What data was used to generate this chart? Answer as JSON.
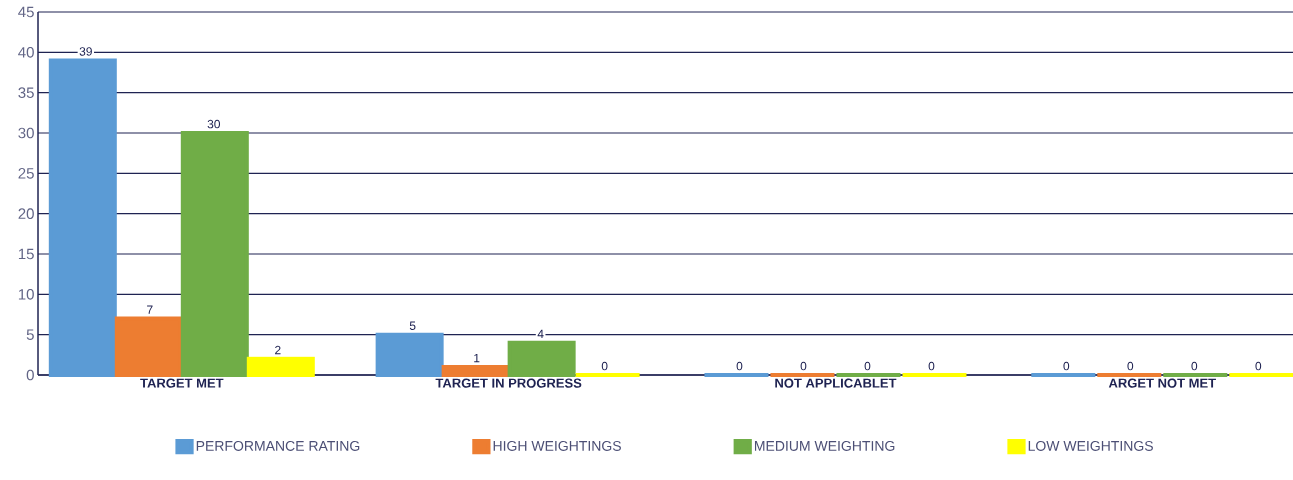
{
  "chart_data": {
    "type": "bar",
    "categories": [
      "TARGET MET",
      "TARGET IN PROGRESS",
      "NOT APPLICABLET",
      "ARGET NOT MET"
    ],
    "series": [
      {
        "name": "PERFORMANCE RATING",
        "color": "#5b9bd5",
        "values": [
          39,
          5,
          0,
          0
        ]
      },
      {
        "name": "HIGH WEIGHTINGS",
        "color": "#ed7d31",
        "values": [
          7,
          1,
          0,
          0
        ]
      },
      {
        "name": "MEDIUM WEIGHTING",
        "color": "#70ad47",
        "values": [
          30,
          4,
          0,
          0
        ]
      },
      {
        "name": "LOW WEIGHTINGS",
        "color": "#ffff00",
        "values": [
          2,
          0,
          0,
          0
        ]
      }
    ],
    "ylim": [
      0,
      45
    ],
    "yticks": [
      0,
      5,
      10,
      15,
      20,
      25,
      30,
      35,
      40,
      45
    ],
    "grid": "y",
    "legend": "bottom",
    "data_labels": true
  }
}
